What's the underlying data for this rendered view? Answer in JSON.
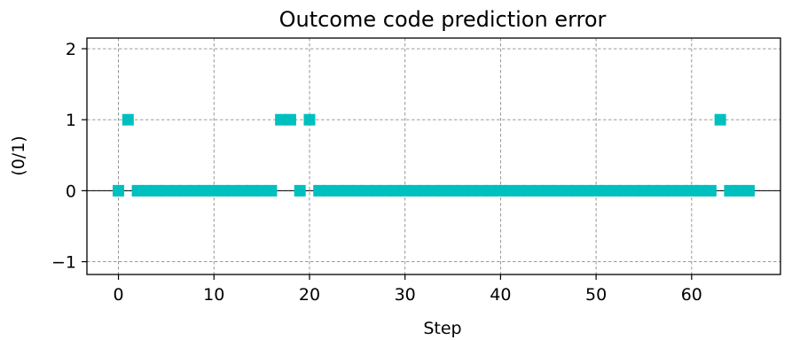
{
  "chart_data": {
    "type": "scatter",
    "title": "Outcome code prediction error",
    "xlabel": "Step",
    "ylabel": "(0/1)",
    "xlim": [
      -3.3,
      69.3
    ],
    "ylim": [
      -1.18,
      2.15
    ],
    "xticks": [
      0,
      10,
      20,
      30,
      40,
      50,
      60
    ],
    "yticks": [
      -1,
      0,
      1,
      2
    ],
    "ytick_labels": [
      "−1",
      "0",
      "1",
      "2"
    ],
    "grid": true,
    "marker": "square",
    "color": "#00bfbf",
    "x": [
      0,
      1,
      2,
      3,
      4,
      5,
      6,
      7,
      8,
      9,
      10,
      11,
      12,
      13,
      14,
      15,
      16,
      17,
      18,
      19,
      20,
      21,
      22,
      23,
      24,
      25,
      26,
      27,
      28,
      29,
      30,
      31,
      32,
      33,
      34,
      35,
      36,
      37,
      38,
      39,
      40,
      41,
      42,
      43,
      44,
      45,
      46,
      47,
      48,
      49,
      50,
      51,
      52,
      53,
      54,
      55,
      56,
      57,
      58,
      59,
      60,
      61,
      62,
      63,
      64,
      65,
      66
    ],
    "y": [
      0,
      1,
      0,
      0,
      0,
      0,
      0,
      0,
      0,
      0,
      0,
      0,
      0,
      0,
      0,
      0,
      0,
      1,
      1,
      0,
      1,
      0,
      0,
      0,
      0,
      0,
      0,
      0,
      0,
      0,
      0,
      0,
      0,
      0,
      0,
      0,
      0,
      0,
      0,
      0,
      0,
      0,
      0,
      0,
      0,
      0,
      0,
      0,
      0,
      0,
      0,
      0,
      0,
      0,
      0,
      0,
      0,
      0,
      0,
      0,
      0,
      0,
      0,
      1,
      0,
      0,
      0
    ]
  }
}
